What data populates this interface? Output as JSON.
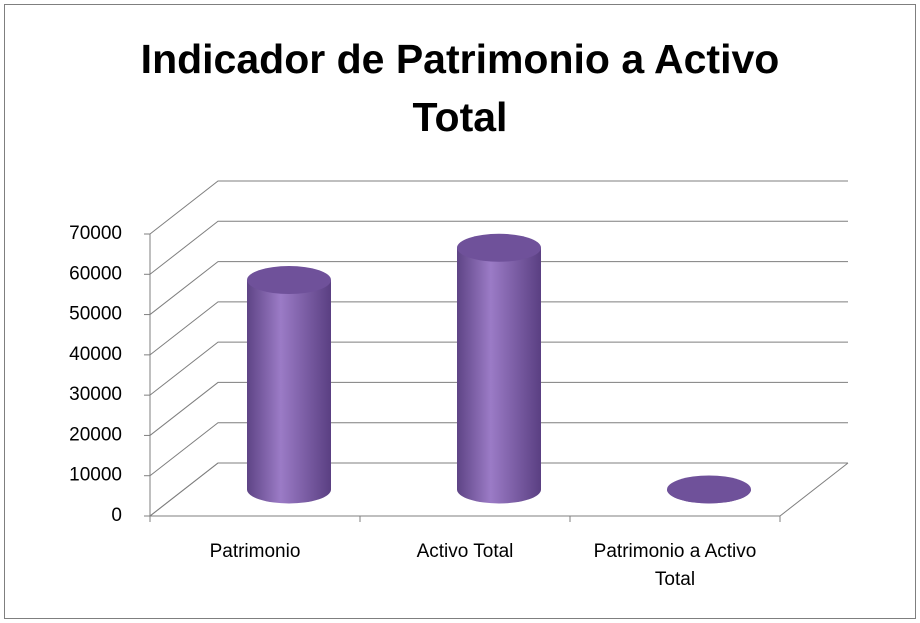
{
  "chart_data": {
    "type": "bar3d",
    "title": "Indicador de Patrimonio a Activo Total",
    "categories": [
      "Patrimonio",
      "Activo Total",
      "Patrimonio a Activo Total"
    ],
    "values": [
      52000,
      60000,
      0.87
    ],
    "color": "#7f5fa8",
    "ylim": [
      0,
      70000
    ],
    "yticks": [
      0,
      10000,
      20000,
      30000,
      40000,
      50000,
      60000,
      70000
    ],
    "grid": true
  }
}
